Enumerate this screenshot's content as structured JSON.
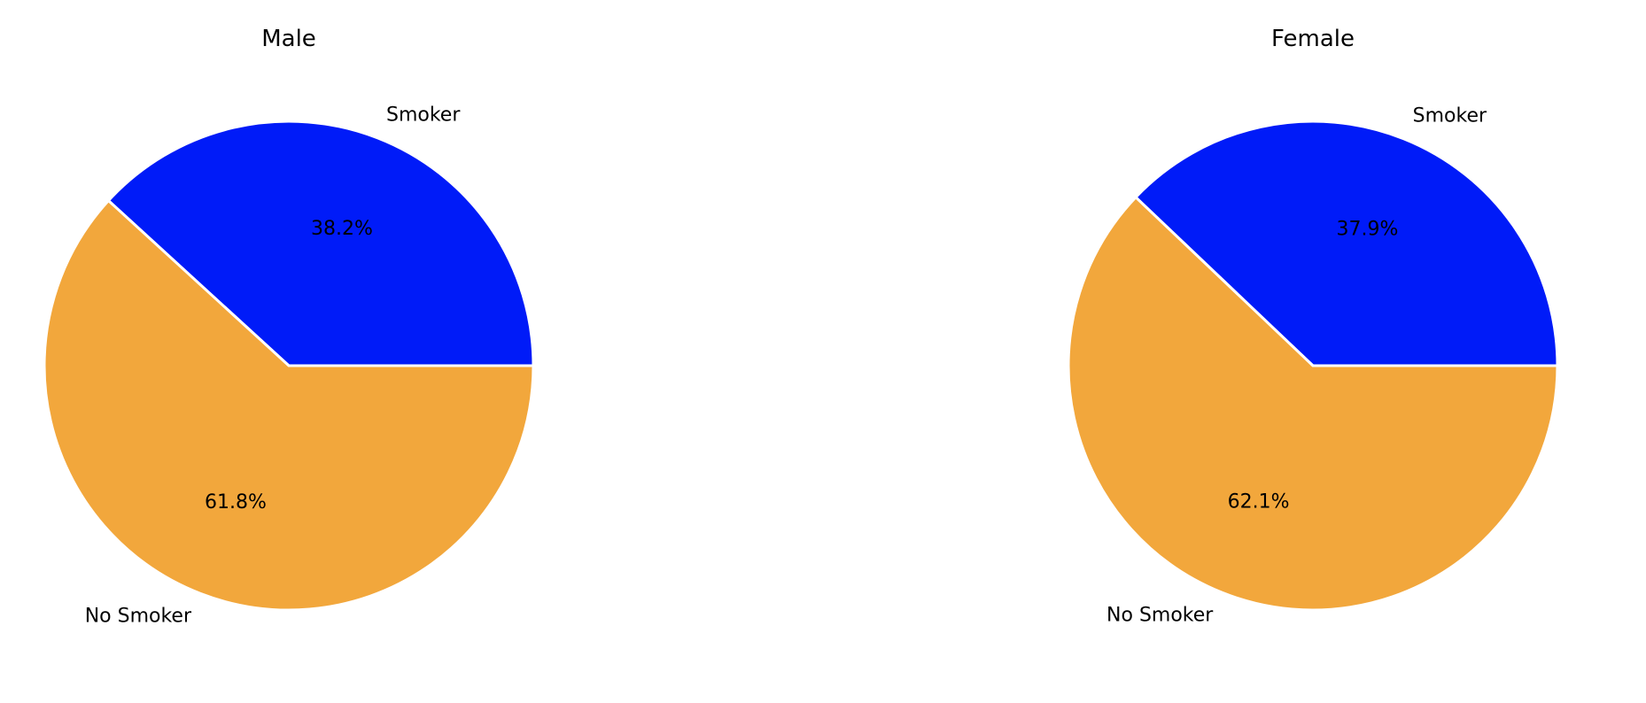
{
  "chart_data": [
    {
      "type": "pie",
      "title": "Male",
      "categories": [
        "Smoker",
        "No Smoker"
      ],
      "values": [
        38.2,
        61.8
      ],
      "percent_labels": [
        "38.2%",
        "61.8%"
      ],
      "colors": [
        "#001bf8",
        "#f2a73c"
      ],
      "start_angle_deg": 0,
      "direction": "counterclockwise"
    },
    {
      "type": "pie",
      "title": "Female",
      "categories": [
        "Smoker",
        "No Smoker"
      ],
      "values": [
        37.9,
        62.1
      ],
      "percent_labels": [
        "37.9%",
        "62.1%"
      ],
      "colors": [
        "#001bf8",
        "#f2a73c"
      ],
      "start_angle_deg": 0,
      "direction": "counterclockwise"
    }
  ]
}
